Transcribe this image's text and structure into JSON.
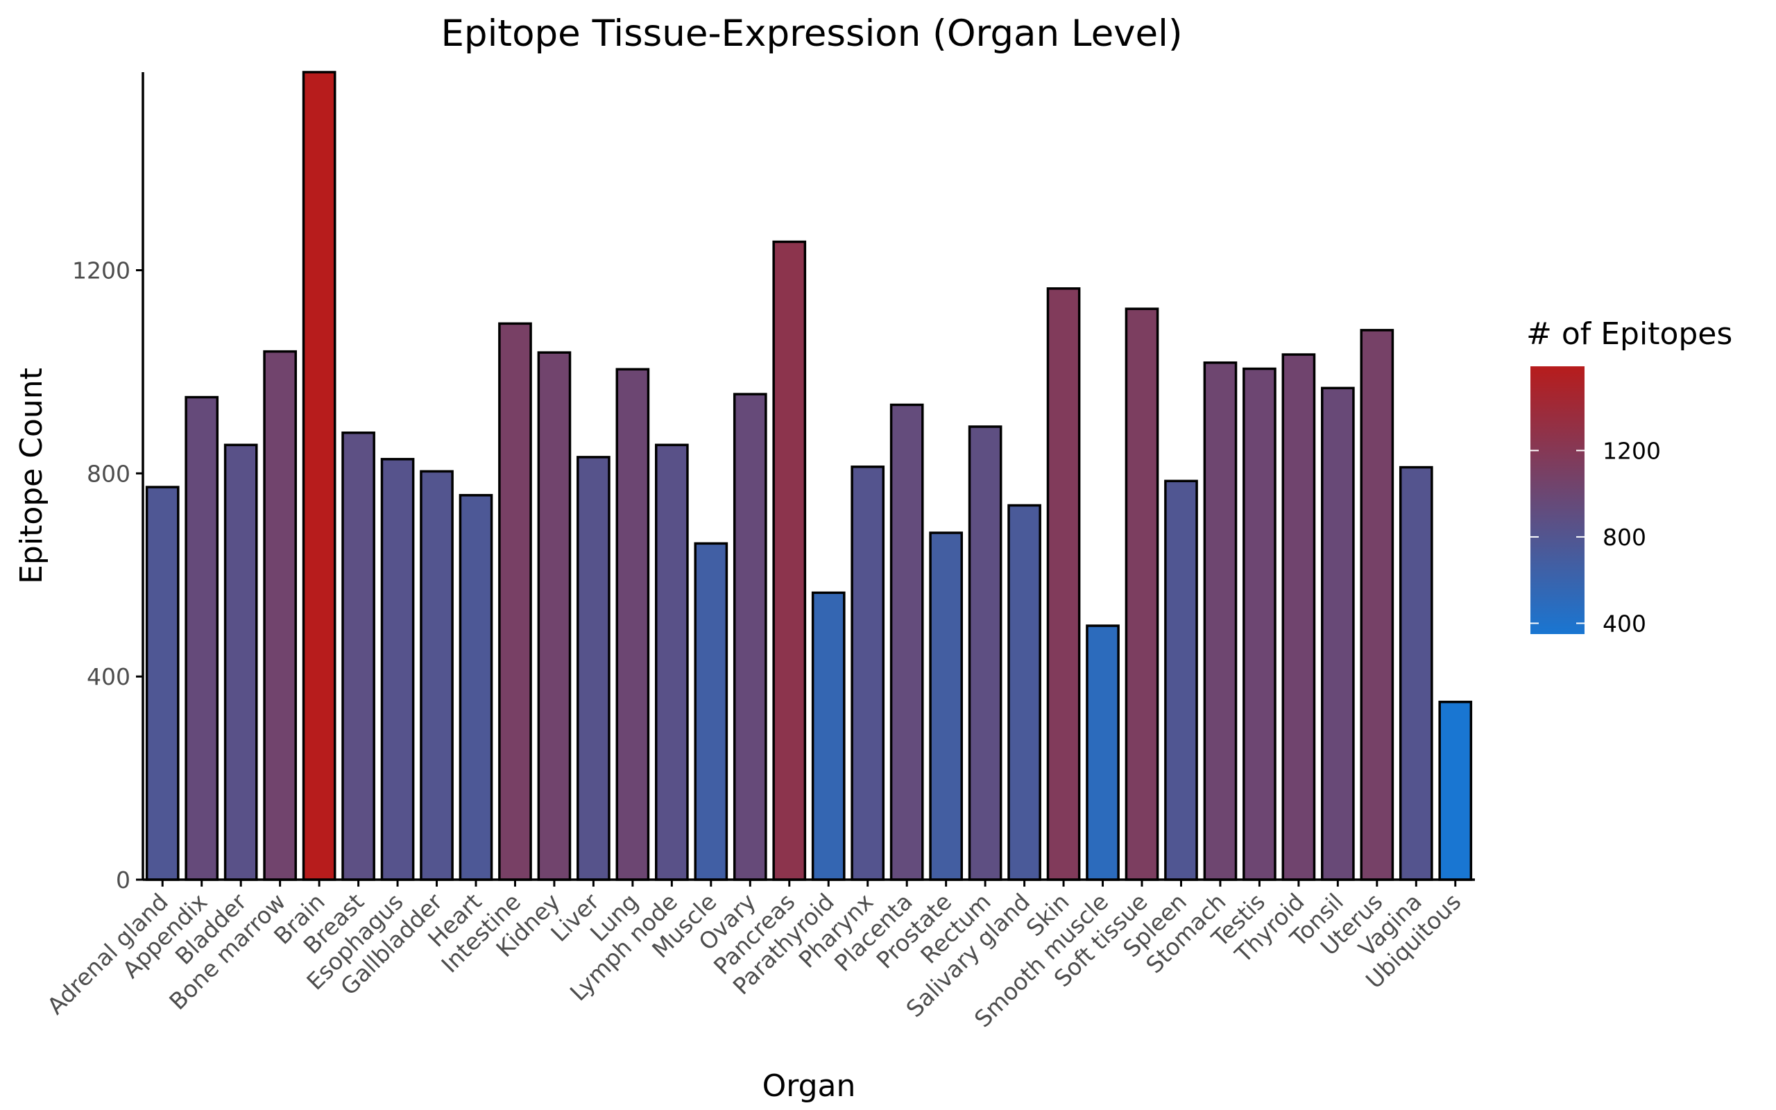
{
  "chart_data": {
    "type": "bar",
    "title": "Epitope Tissue-Expression (Organ Level)",
    "xlabel": "Organ",
    "ylabel": "Epitope Count",
    "ylim": [
      0,
      1590
    ],
    "yticks": [
      0,
      400,
      800,
      1200
    ],
    "grid": false,
    "legend": {
      "title": "# of Epitopes",
      "position": "right",
      "ticks": [
        400,
        800,
        1200
      ],
      "range": [
        350,
        1590
      ],
      "color_low": "#1976d2",
      "color_high": "#b71c1c"
    },
    "categories": [
      "Adrenal gland",
      "Appendix",
      "Bladder",
      "Bone marrow",
      "Brain",
      "Breast",
      "Esophagus",
      "Gallbladder",
      "Heart",
      "Intestine",
      "Kidney",
      "Liver",
      "Lung",
      "Lymph node",
      "Muscle",
      "Ovary",
      "Pancreas",
      "Parathyroid",
      "Pharynx",
      "Placenta",
      "Prostate",
      "Rectum",
      "Salivary gland",
      "Skin",
      "Smooth muscle",
      "Soft tissue",
      "Spleen",
      "Stomach",
      "Testis",
      "Thyroid",
      "Tonsil",
      "Uterus",
      "Vagina",
      "Ubiquitous"
    ],
    "values": [
      773,
      950,
      856,
      1040,
      1590,
      880,
      828,
      804,
      757,
      1095,
      1038,
      832,
      1005,
      856,
      662,
      956,
      1256,
      565,
      813,
      935,
      683,
      892,
      737,
      1164,
      500,
      1124,
      785,
      1018,
      1006,
      1034,
      968,
      1082,
      812,
      350
    ]
  }
}
